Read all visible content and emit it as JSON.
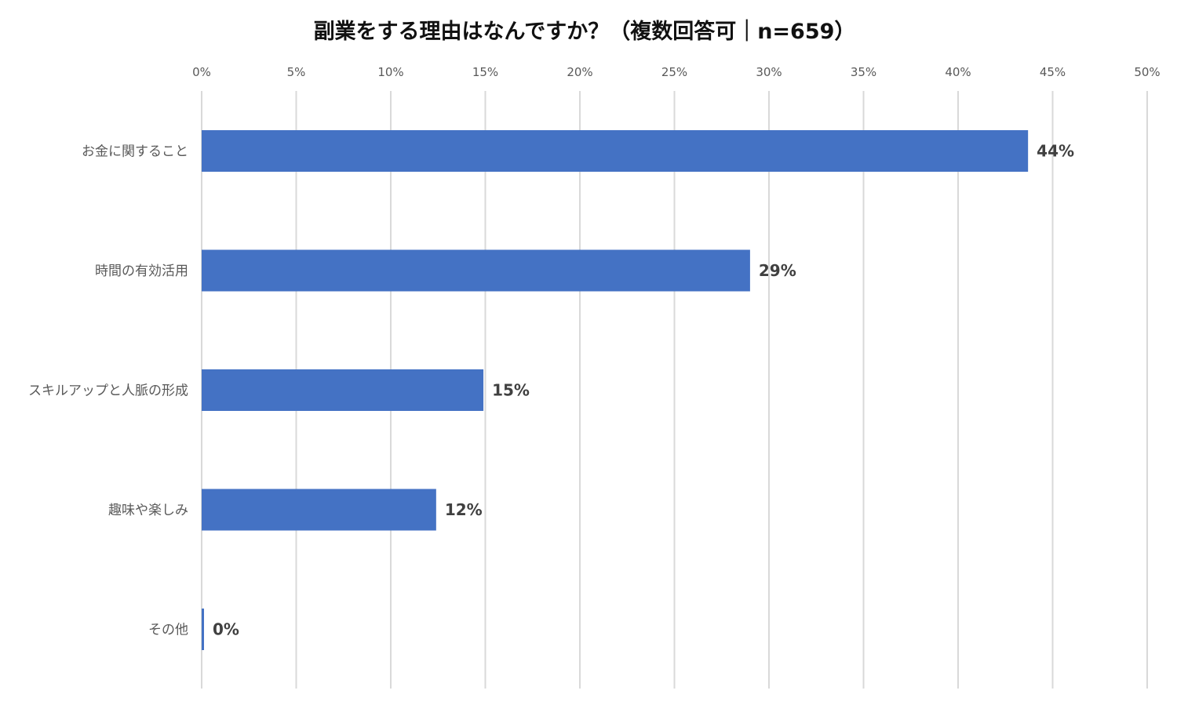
{
  "chart_data": {
    "type": "bar",
    "orientation": "horizontal",
    "title": "副業をする理由はなんですか？（複数回答可｜n=659）",
    "categories": [
      "お金に関すること",
      "時間の有効活用",
      "スキルアップと人脈の形成",
      "趣味や楽しみ",
      "その他"
    ],
    "values": [
      43.7,
      29.0,
      14.9,
      12.4,
      0.1
    ],
    "data_labels": [
      "44%",
      "29%",
      "15%",
      "12%",
      "0%"
    ],
    "x_ticks": [
      "0%",
      "5%",
      "10%",
      "15%",
      "20%",
      "25%",
      "30%",
      "35%",
      "40%",
      "45%",
      "50%"
    ],
    "xlim": [
      0,
      50
    ],
    "axis_position": "top",
    "grid": true,
    "bar_color": "#4472C4",
    "grid_color": "#D9D9D9"
  }
}
